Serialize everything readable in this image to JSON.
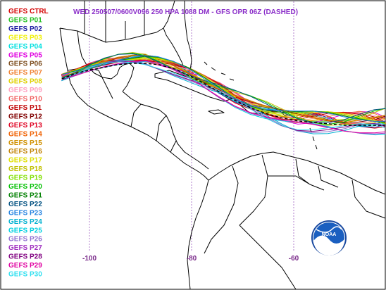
{
  "title": "WED 250507/0600V096  250 HPA 1088 DM - GFS OPR 06Z (DASHED)",
  "title_color": "#8b2fc9",
  "map": {
    "lon_labels": [
      "-100",
      "-80",
      "-60"
    ],
    "lon_values": [
      -100,
      -80,
      -60
    ],
    "lon_label_color": "#7a2a8a",
    "grid_color": "#a060c0",
    "land_color": "#000000",
    "frame_color": "#000000",
    "logo": "noaa-logo"
  },
  "legend": [
    {
      "label": "GEFS CTRL",
      "color": "#d40000"
    },
    {
      "label": "GEFS P01",
      "color": "#22c022"
    },
    {
      "label": "GEFS P02",
      "color": "#1a1aa0"
    },
    {
      "label": "GEFS P03",
      "color": "#f0f000"
    },
    {
      "label": "GEFS P04",
      "color": "#00e0e0"
    },
    {
      "label": "GEFS P05",
      "color": "#e000e0"
    },
    {
      "label": "GEFS P06",
      "color": "#7a4a1a"
    },
    {
      "label": "GEFS P07",
      "color": "#f08030"
    },
    {
      "label": "GEFS P08",
      "color": "#e0d000"
    },
    {
      "label": "GEFS P09",
      "color": "#ffa0c0"
    },
    {
      "label": "GEFS P10",
      "color": "#f06060"
    },
    {
      "label": "GEFS P11",
      "color": "#c00000"
    },
    {
      "label": "GEFS P12",
      "color": "#800000"
    },
    {
      "label": "GEFS P13",
      "color": "#e00020"
    },
    {
      "label": "GEFS P14",
      "color": "#f06000"
    },
    {
      "label": "GEFS P15",
      "color": "#d09000"
    },
    {
      "label": "GEFS P16",
      "color": "#c08000"
    },
    {
      "label": "GEFS P17",
      "color": "#e0e000"
    },
    {
      "label": "GEFS P18",
      "color": "#c0c000"
    },
    {
      "label": "GEFS P19",
      "color": "#80e000"
    },
    {
      "label": "GEFS P20",
      "color": "#00c000"
    },
    {
      "label": "GEFS P21",
      "color": "#008000"
    },
    {
      "label": "GEFS P22",
      "color": "#005080"
    },
    {
      "label": "GEFS P23",
      "color": "#2080e0"
    },
    {
      "label": "GEFS P24",
      "color": "#00b0d0"
    },
    {
      "label": "GEFS P25",
      "color": "#00d0e0"
    },
    {
      "label": "GEFS P26",
      "color": "#9070d0"
    },
    {
      "label": "GEFS P27",
      "color": "#a030c0"
    },
    {
      "label": "GEFS P28",
      "color": "#800080"
    },
    {
      "label": "GEFS P29",
      "color": "#e000a0"
    },
    {
      "label": "GEFS P30",
      "color": "#30e0f0"
    }
  ]
}
